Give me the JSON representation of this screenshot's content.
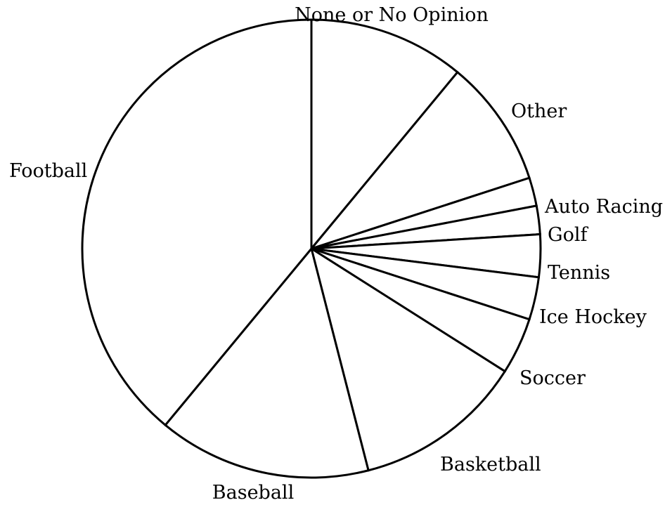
{
  "chart_data": {
    "type": "pie",
    "title": "",
    "start_angle_deg": 0,
    "direction": "clockwise",
    "slices": [
      {
        "label": "None or No Opinion",
        "value": 11
      },
      {
        "label": "Other",
        "value": 9
      },
      {
        "label": "Auto Racing",
        "value": 2
      },
      {
        "label": "Golf",
        "value": 2
      },
      {
        "label": "Tennis",
        "value": 3
      },
      {
        "label": "Ice Hockey",
        "value": 3
      },
      {
        "label": "Soccer",
        "value": 4
      },
      {
        "label": "Basketball",
        "value": 12
      },
      {
        "label": "Baseball",
        "value": 15
      },
      {
        "label": "Football",
        "value": 39
      }
    ],
    "colors": {
      "fill": "#ffffff",
      "stroke": "#000000"
    }
  }
}
